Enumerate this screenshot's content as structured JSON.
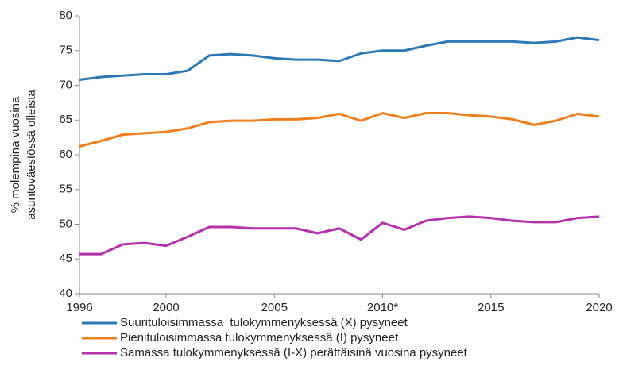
{
  "chart_data": {
    "type": "line",
    "ylabel": [
      "% molempina vuosina",
      "asuntoväestössä  olleista"
    ],
    "x": [
      1996,
      1997,
      1998,
      1999,
      2000,
      2001,
      2002,
      2003,
      2004,
      2005,
      2006,
      2007,
      2008,
      2009,
      2010,
      2011,
      2012,
      2013,
      2014,
      2015,
      2016,
      2017,
      2018,
      2019,
      2020
    ],
    "xlim": [
      1996,
      2020
    ],
    "xticks": [
      1996,
      2000,
      2005,
      {
        "value": 2010,
        "label": "2010*"
      },
      2015,
      2020
    ],
    "ylim": [
      40,
      80
    ],
    "yticks": [
      40,
      45,
      50,
      55,
      60,
      65,
      70,
      75,
      80
    ],
    "grid": false,
    "legend": "bottom",
    "series": [
      {
        "name": "Suurituloisimmassa  tulokymmenyksessä (X) pysyneet",
        "color": "#2a7ab8",
        "values": [
          70.8,
          71.2,
          71.4,
          71.6,
          71.6,
          72.1,
          74.3,
          74.5,
          74.3,
          73.9,
          73.7,
          73.7,
          73.5,
          74.6,
          75.0,
          75.0,
          75.7,
          76.3,
          76.3,
          76.3,
          76.3,
          76.1,
          76.3,
          76.9,
          76.5
        ]
      },
      {
        "name": "Pienituloisimmassa tulokymmenyksessä (I) pysyneet",
        "color": "#f07e1b",
        "values": [
          61.2,
          62.0,
          62.9,
          63.1,
          63.3,
          63.8,
          64.7,
          64.9,
          64.9,
          65.1,
          65.1,
          65.3,
          65.9,
          64.9,
          66.0,
          65.3,
          66.0,
          66.0,
          65.7,
          65.5,
          65.1,
          64.3,
          64.9,
          65.9,
          65.5
        ]
      },
      {
        "name": "Samassa tulokymmenyksessä (I-X) perättäisinä vuosina pysyneet",
        "color": "#b52fae",
        "values": [
          45.7,
          45.7,
          47.1,
          47.3,
          46.9,
          48.2,
          49.6,
          49.6,
          49.4,
          49.4,
          49.4,
          48.7,
          49.4,
          47.8,
          50.2,
          49.2,
          50.5,
          50.9,
          51.1,
          50.9,
          50.5,
          50.3,
          50.3,
          50.9,
          51.1
        ]
      }
    ]
  }
}
